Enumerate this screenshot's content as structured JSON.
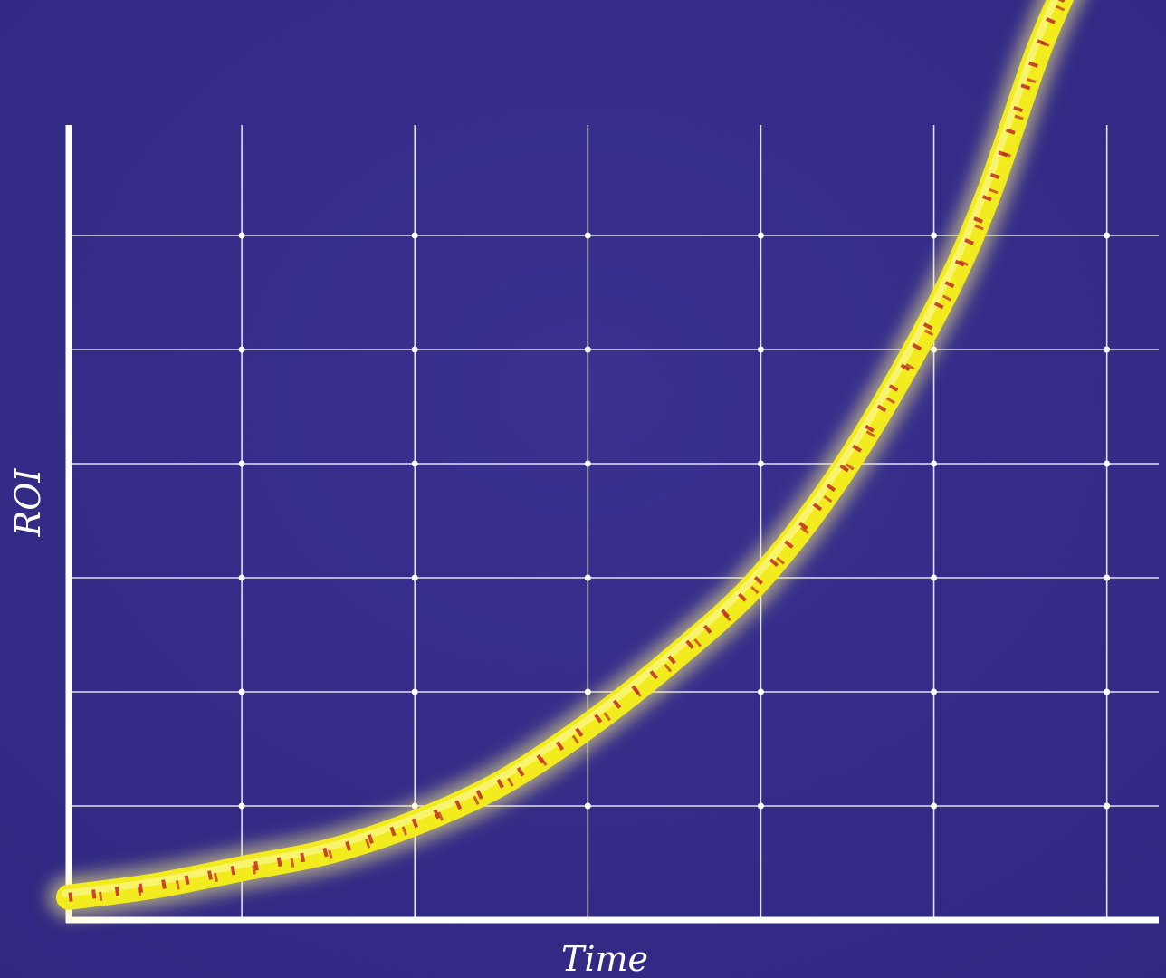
{
  "colors": {
    "background": "#352b86",
    "grid": "#ffffff",
    "axis": "#ffffff",
    "curve": "#f2ec1e",
    "curve_glow": "#fff88a",
    "curve_stripe": "#c0282a"
  },
  "chart_data": {
    "type": "line",
    "xlabel": "Time",
    "ylabel": "ROI",
    "grid": true,
    "xlim": [
      0,
      6.3
    ],
    "ylim": [
      0,
      8
    ],
    "x_gridlines": [
      1,
      2,
      3,
      4,
      5,
      6
    ],
    "y_gridlines": [
      1,
      2,
      3,
      4,
      5,
      6
    ],
    "series": [
      {
        "style": "rope",
        "x": [
          0.0,
          0.5,
          1.0,
          1.5,
          2.0,
          2.5,
          3.0,
          3.5,
          4.0,
          4.5,
          5.0,
          5.3,
          5.6,
          5.8
        ],
        "y": [
          0.2,
          0.3,
          0.45,
          0.6,
          0.85,
          1.2,
          1.7,
          2.3,
          3.0,
          4.0,
          5.3,
          6.3,
          7.6,
          8.3
        ]
      }
    ]
  }
}
